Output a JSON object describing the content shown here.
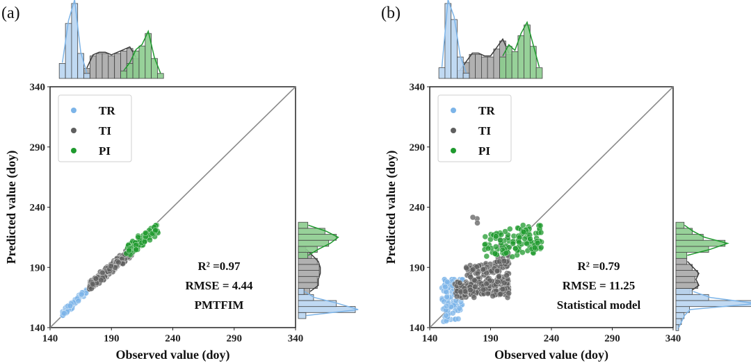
{
  "colors": {
    "TR": "#7cb4e8",
    "TI": "#5f5f5f",
    "PI": "#1f9a2e",
    "identity": "#8a8a8a",
    "TR_hist": "#b9d5f1",
    "TI_hist": "#a8a8a8",
    "PI_hist": "#8ccc8e"
  },
  "chart_data": [
    {
      "type": "scatter",
      "panel_label": "(a)",
      "xlabel": "Observed value (doy)",
      "ylabel": "Predicted value (doy)",
      "xlim": [
        140,
        340
      ],
      "ylim": [
        140,
        340
      ],
      "xticks": [
        "140",
        "190",
        "240",
        "290",
        "340"
      ],
      "yticks": [
        "140",
        "190",
        "240",
        "290",
        "340"
      ],
      "identity_line": true,
      "legend": {
        "position": "top-left",
        "entries": [
          "TR",
          "TI",
          "PI"
        ]
      },
      "annotations": [
        "R² =0.97",
        "RMSE = 4.44",
        "PMTFIM"
      ],
      "series": [
        {
          "name": "TR",
          "clusters": [
            {
              "x": [
                150,
                170
              ],
              "y": [
                150,
                172
              ],
              "n": 70,
              "corr": 0.9
            }
          ]
        },
        {
          "name": "TI",
          "clusters": [
            {
              "x": [
                172,
                207
              ],
              "y": [
                172,
                206
              ],
              "n": 260,
              "corr": 0.9
            }
          ]
        },
        {
          "name": "PI",
          "clusters": [
            {
              "x": [
                202,
                228
              ],
              "y": [
                200,
                225
              ],
              "n": 90,
              "corr": 0.7
            }
          ]
        }
      ],
      "marginal_x": {
        "TR": [
          [
            150,
            0.6
          ],
          [
            155,
            2.2
          ],
          [
            160,
            3.0
          ],
          [
            165,
            1.0
          ],
          [
            170,
            0.2
          ]
        ],
        "TI": [
          [
            170,
            0.4
          ],
          [
            175,
            0.9
          ],
          [
            180,
            1.0
          ],
          [
            185,
            1.0
          ],
          [
            190,
            0.9
          ],
          [
            195,
            1.0
          ],
          [
            200,
            1.1
          ],
          [
            205,
            1.2
          ],
          [
            210,
            0.8
          ]
        ],
        "PI": [
          [
            200,
            0.3
          ],
          [
            205,
            0.6
          ],
          [
            210,
            1.1
          ],
          [
            215,
            1.3
          ],
          [
            220,
            1.8
          ],
          [
            225,
            0.8
          ],
          [
            230,
            0.2
          ]
        ]
      },
      "marginal_y": {
        "TR": [
          [
            150,
            0.4
          ],
          [
            155,
            3.0
          ],
          [
            160,
            2.0
          ],
          [
            165,
            0.8
          ],
          [
            170,
            0.3
          ]
        ],
        "TI": [
          [
            170,
            0.6
          ],
          [
            175,
            1.0
          ],
          [
            180,
            1.0
          ],
          [
            185,
            1.1
          ],
          [
            190,
            1.1
          ],
          [
            195,
            1.0
          ],
          [
            200,
            0.7
          ],
          [
            205,
            0.4
          ]
        ],
        "PI": [
          [
            200,
            0.5
          ],
          [
            205,
            1.0
          ],
          [
            210,
            1.6
          ],
          [
            215,
            2.0
          ],
          [
            220,
            1.4
          ],
          [
            225,
            0.5
          ]
        ]
      }
    },
    {
      "type": "scatter",
      "panel_label": "(b)",
      "xlabel": "Observed value (doy)",
      "ylabel": "Predicted value (doy)",
      "xlim": [
        140,
        340
      ],
      "ylim": [
        140,
        340
      ],
      "xticks": [
        "140",
        "190",
        "240",
        "290",
        "340"
      ],
      "yticks": [
        "140",
        "190",
        "240",
        "290",
        "340"
      ],
      "identity_line": true,
      "legend": {
        "position": "top-left",
        "entries": [
          "TR",
          "TI",
          "PI"
        ]
      },
      "annotations": [
        "R² =0.79",
        "RMSE = 11.25",
        "Statistical model"
      ],
      "series": [
        {
          "name": "TR",
          "clusters": [
            {
              "x": [
                150,
                168
              ],
              "y": [
                145,
                180
              ],
              "n": 90,
              "corr": 0.0
            }
          ]
        },
        {
          "name": "TI",
          "clusters": [
            {
              "x": [
                160,
                205
              ],
              "y": [
                165,
                182
              ],
              "n": 220,
              "corr": 0.2
            },
            {
              "x": [
                170,
                205
              ],
              "y": [
                182,
                195
              ],
              "n": 60,
              "corr": 0.3
            },
            {
              "x": [
                195,
                205
              ],
              "y": [
                160,
                215
              ],
              "n": 40,
              "corr": 0.0
            },
            {
              "x": [
                175,
                185
              ],
              "y": [
                225,
                238
              ],
              "n": 3,
              "corr": 0.0
            }
          ]
        },
        {
          "name": "PI",
          "clusters": [
            {
              "x": [
                185,
                232
              ],
              "y": [
                198,
                225
              ],
              "n": 120,
              "corr": 0.2
            }
          ]
        }
      ],
      "marginal_x": {
        "TR": [
          [
            150,
            0.4
          ],
          [
            155,
            2.8
          ],
          [
            160,
            2.2
          ],
          [
            165,
            0.8
          ],
          [
            170,
            0.2
          ]
        ],
        "TI": [
          [
            165,
            0.3
          ],
          [
            170,
            0.6
          ],
          [
            175,
            0.9
          ],
          [
            180,
            0.9
          ],
          [
            185,
            0.8
          ],
          [
            190,
            0.8
          ],
          [
            195,
            1.1
          ],
          [
            200,
            1.4
          ],
          [
            205,
            0.9
          ]
        ],
        "PI": [
          [
            200,
            0.8
          ],
          [
            205,
            1.2
          ],
          [
            210,
            1.0
          ],
          [
            215,
            1.6
          ],
          [
            220,
            2.0
          ],
          [
            225,
            1.2
          ],
          [
            230,
            0.4
          ]
        ]
      },
      "marginal_y": {
        "TR": [
          [
            140,
            0.1
          ],
          [
            145,
            0.2
          ],
          [
            150,
            0.3
          ],
          [
            155,
            0.5
          ],
          [
            160,
            2.8
          ],
          [
            165,
            1.2
          ],
          [
            170,
            0.6
          ]
        ],
        "TI": [
          [
            170,
            0.5
          ],
          [
            175,
            0.8
          ],
          [
            180,
            0.7
          ],
          [
            185,
            0.8
          ],
          [
            190,
            0.6
          ],
          [
            195,
            0.4
          ]
        ],
        "PI": [
          [
            200,
            0.4
          ],
          [
            205,
            1.2
          ],
          [
            210,
            1.8
          ],
          [
            215,
            1.0
          ],
          [
            220,
            0.6
          ],
          [
            225,
            0.3
          ]
        ]
      }
    }
  ]
}
